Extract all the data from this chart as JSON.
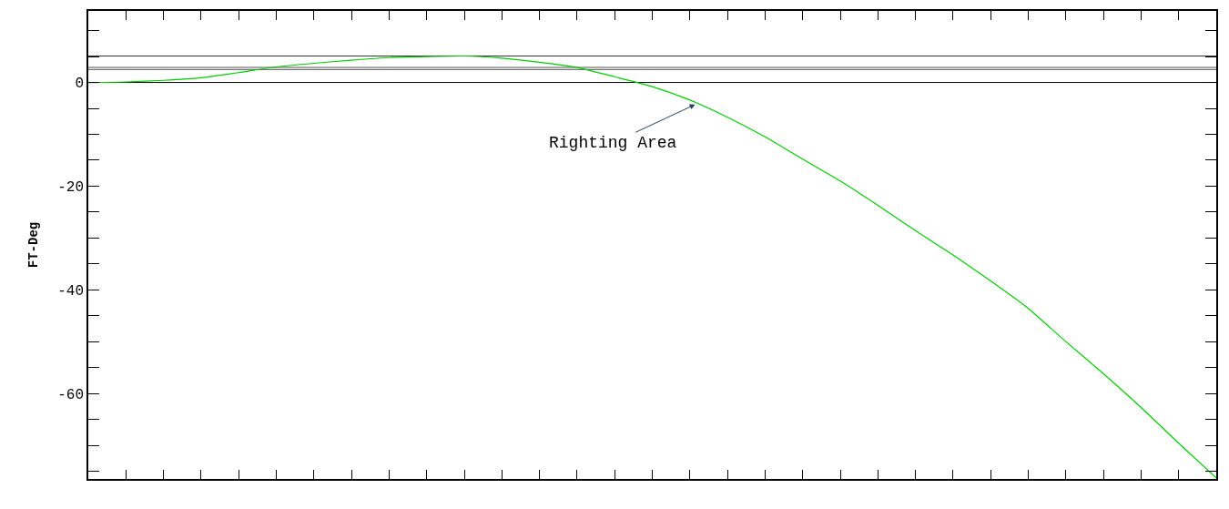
{
  "chart_data": {
    "type": "line",
    "ylabel": "FT-Deg",
    "categories": [
      null,
      null,
      null,
      null,
      null,
      null,
      null,
      null,
      null,
      null,
      null,
      null,
      null,
      null,
      null,
      null,
      null,
      null,
      null,
      null,
      null,
      null,
      null,
      null,
      null,
      null,
      null,
      null,
      null,
      null,
      null
    ],
    "series": [
      {
        "color": "#00cc00",
        "values": [
          0,
          0.1,
          0.4,
          0.9,
          1.9,
          3.0,
          3.7,
          4.3,
          4.8,
          5.0,
          5.1,
          4.7,
          3.9,
          2.9,
          1.1,
          -0.8,
          -3.4,
          -6.7,
          -10.5,
          -14.8,
          -19,
          -23.7,
          -28.6,
          -33.3,
          -38.3,
          -43.6,
          -50,
          -56.2,
          -62.7,
          -69.6,
          -76.3
        ]
      }
    ],
    "ylim": [
      -76.5,
      13.8
    ],
    "yticks": [
      {
        "value": -75,
        "label": null
      },
      {
        "value": -70,
        "label": null
      },
      {
        "value": -65,
        "label": null
      },
      {
        "value": -60,
        "label": "-60"
      },
      {
        "value": -55,
        "label": null
      },
      {
        "value": -50,
        "label": null
      },
      {
        "value": -45,
        "label": null
      },
      {
        "value": -40,
        "label": "-40"
      },
      {
        "value": -35,
        "label": null
      },
      {
        "value": -30,
        "label": null
      },
      {
        "value": -25,
        "label": null
      },
      {
        "value": -20,
        "label": "-20"
      },
      {
        "value": -15,
        "label": null
      },
      {
        "value": -10,
        "label": null
      },
      {
        "value": -5,
        "label": null
      },
      {
        "value": 0,
        "label": "0"
      },
      {
        "value": 5,
        "label": null
      },
      {
        "value": 10,
        "label": null
      }
    ],
    "grid": false,
    "marker": "none",
    "line_style": "solid",
    "ref_lines": [
      {
        "axis": "y",
        "value": 0,
        "color": "#000000"
      },
      {
        "axis": "y",
        "value": 5.1,
        "color": "#333333"
      },
      {
        "axis": "y",
        "value": 2.9,
        "color": "#555555"
      },
      {
        "axis": "y",
        "value": 2.5,
        "color": "#555555"
      }
    ],
    "annotations": [
      "Righting Area"
    ]
  }
}
